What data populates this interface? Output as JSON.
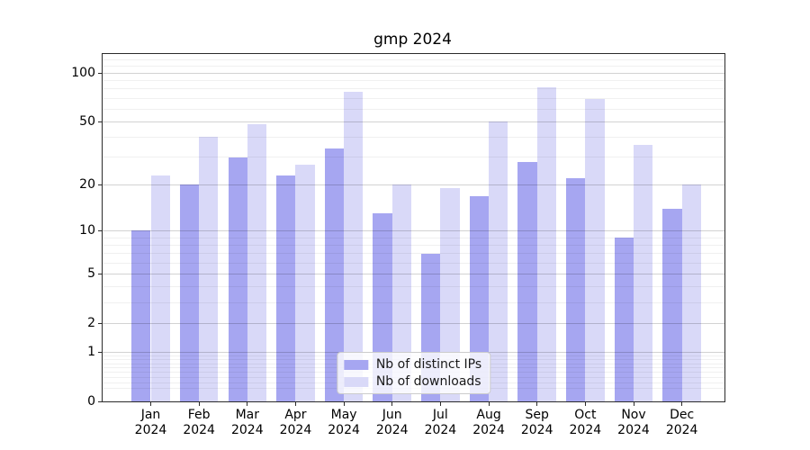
{
  "chart_data": {
    "type": "bar",
    "title": "gmp 2024",
    "yscale": "log1p",
    "ylim": [
      0,
      131
    ],
    "grid": true,
    "legend_position": "lower center",
    "categories": [
      "Jan",
      "Feb",
      "Mar",
      "Apr",
      "May",
      "Jun",
      "Jul",
      "Aug",
      "Sep",
      "Oct",
      "Nov",
      "Dec"
    ],
    "year": "2024",
    "yticks": [
      0,
      1,
      2,
      5,
      10,
      20,
      50,
      100
    ],
    "minor_yticks": [
      0.2,
      0.3,
      0.4,
      0.5,
      0.6,
      0.7,
      0.8,
      0.9,
      3,
      4,
      6,
      7,
      8,
      9,
      30,
      40,
      60,
      70,
      80,
      90,
      110,
      120
    ],
    "series": [
      {
        "name": "Nb of distinct IPs",
        "color": "#a6a6f1",
        "values": [
          10,
          20,
          30,
          23,
          34,
          13,
          7,
          17,
          28,
          22,
          9,
          14
        ]
      },
      {
        "name": "Nb of downloads",
        "color": "#d9d9f8",
        "values": [
          23,
          40,
          48,
          27,
          77,
          20,
          19,
          50,
          82,
          69,
          36,
          20
        ]
      }
    ]
  }
}
